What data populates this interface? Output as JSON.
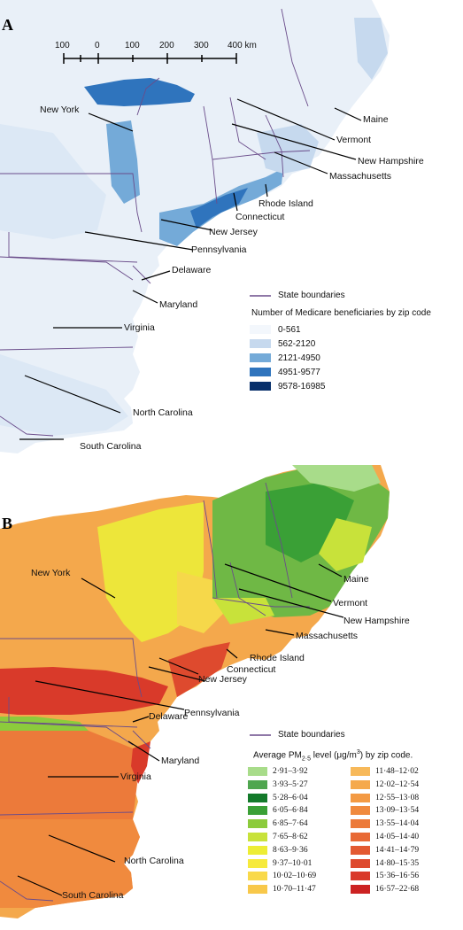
{
  "panel_a": {
    "letter": "A",
    "scale_labels": [
      "100",
      "0",
      "100",
      "200",
      "300",
      "400 km"
    ],
    "state_labels": [
      "New York",
      "Maine",
      "Vermont",
      "New Hampshire",
      "Massachusetts",
      "Rhode Island",
      "Connecticut",
      "New Jersey",
      "Pennsylvania",
      "Delaware",
      "Maryland",
      "Virginia",
      "North Carolina",
      "South Carolina"
    ],
    "legend_boundary": "State boundaries",
    "legend_title": "Number of Medicare beneficiaries by zip code",
    "legend_items": [
      {
        "label": "0-561",
        "color": "#f3f7fc"
      },
      {
        "label": "562-2120",
        "color": "#c6d9ee"
      },
      {
        "label": "2121-4950",
        "color": "#74aad8"
      },
      {
        "label": "4951-9577",
        "color": "#2f74bd"
      },
      {
        "label": "9578-16985",
        "color": "#08306b"
      }
    ]
  },
  "panel_b": {
    "letter": "B",
    "state_labels": [
      "New York",
      "Maine",
      "Vermont",
      "New Hampshire",
      "Massachusetts",
      "Rhode Island",
      "Connecticut",
      "New Jersey",
      "Pennsylvania",
      "Delaware",
      "Maryland",
      "Virginia",
      "North Carolina",
      "South Carolina"
    ],
    "legend_boundary": "State boundaries",
    "legend_title_prefix": "Average PM",
    "legend_title_sub": "2·5",
    "legend_title_suffix": " level (μg/m",
    "legend_title_sup": "3",
    "legend_title_end": ") by zip code.",
    "legend_items": [
      {
        "label": "2·91–3·92",
        "color": "#a8dc8a"
      },
      {
        "label": "3·93–5·27",
        "color": "#4fa64f"
      },
      {
        "label": "5·28–6·04",
        "color": "#137a2a"
      },
      {
        "label": "6·05–6·84",
        "color": "#3aa036"
      },
      {
        "label": "6·85–7·64",
        "color": "#8ccb3c"
      },
      {
        "label": "7·65–8·62",
        "color": "#c8e23a"
      },
      {
        "label": "8·63–9·36",
        "color": "#eded35"
      },
      {
        "label": "9·37–10·01",
        "color": "#f6ea3c"
      },
      {
        "label": "10·02–10·69",
        "color": "#f9d94a"
      },
      {
        "label": "10·70–11·47",
        "color": "#f8c84a"
      },
      {
        "label": "11·48–12·02",
        "color": "#f7b95a"
      },
      {
        "label": "12·02–12·54",
        "color": "#f5a94c"
      },
      {
        "label": "12·55–13·08",
        "color": "#f39a43"
      },
      {
        "label": "13·09–13·54",
        "color": "#f08a3e"
      },
      {
        "label": "13·55–14·04",
        "color": "#ec7a3a"
      },
      {
        "label": "14·05–14·40",
        "color": "#e86a36"
      },
      {
        "label": "14·41–14·79",
        "color": "#e35a32"
      },
      {
        "label": "14·80–15·35",
        "color": "#de4a2e"
      },
      {
        "label": "15·36–16·56",
        "color": "#d93a2a"
      },
      {
        "label": "16·57–22·68",
        "color": "#cc2222"
      }
    ]
  },
  "colors": {
    "boundary": "#6a4c8a",
    "ocean": "#ffffff",
    "leader": "#000000"
  }
}
